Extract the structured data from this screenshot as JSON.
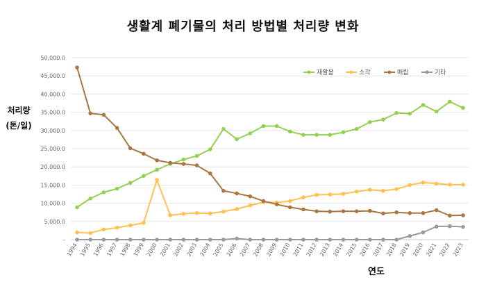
{
  "chart_data": {
    "type": "line",
    "title": "생활계 폐기물의 처리 방법별 처리량 변화",
    "ylabel": "처리량 (톤/일)",
    "ylabel_lines": [
      "처리량",
      "(톤/일)"
    ],
    "xlabel": "연도",
    "ylim": [
      0,
      50000
    ],
    "yticks": [
      "-",
      "5,000.0",
      "10,000.0",
      "15,000.0",
      "20,000.0",
      "25,000.0",
      "30,000.0",
      "35,000.0",
      "40,000.0",
      "45,000.0",
      "50,000.0"
    ],
    "grid": true,
    "legend_position": "top-right",
    "categories": [
      "1994",
      "1995",
      "1996",
      "1997",
      "1998",
      "1999",
      "2000",
      "2001",
      "2002",
      "2003",
      "2004",
      "2005",
      "2006",
      "2007",
      "2008",
      "2009",
      "2010",
      "2011",
      "2012",
      "2013",
      "2014",
      "2015",
      "2016",
      "2017",
      "2018",
      "2019",
      "2020",
      "2021",
      "2022",
      "2023"
    ],
    "series": [
      {
        "name": "재활용",
        "color": "#92d050",
        "values": [
          8900,
          11300,
          13000,
          14000,
          15600,
          17500,
          19200,
          20800,
          22000,
          23000,
          24800,
          30400,
          27600,
          29200,
          31200,
          31200,
          29700,
          28800,
          28800,
          28800,
          29500,
          30400,
          32300,
          33000,
          34800,
          34600,
          37000,
          35200,
          37900,
          36200
        ]
      },
      {
        "name": "소각",
        "color": "#ffc050",
        "values": [
          2000,
          1800,
          2800,
          3300,
          3900,
          4600,
          16400,
          6700,
          7100,
          7300,
          7200,
          7700,
          8400,
          9400,
          10300,
          10200,
          10600,
          11600,
          12300,
          12400,
          12600,
          13200,
          13700,
          13400,
          13900,
          15000,
          15700,
          15400,
          15100,
          15100
        ]
      },
      {
        "name": "매립",
        "color": "#a97640",
        "values": [
          47300,
          34700,
          34300,
          30700,
          25100,
          23600,
          21800,
          21100,
          20800,
          20400,
          18200,
          13400,
          12700,
          11900,
          10600,
          9700,
          8900,
          8300,
          7800,
          7700,
          7800,
          7800,
          7900,
          7200,
          7500,
          7300,
          7300,
          8100,
          6600,
          6700
        ]
      },
      {
        "name": "기타",
        "color": "#999999",
        "values": [
          0,
          0,
          0,
          0,
          0,
          0,
          0,
          0,
          0,
          0,
          0,
          0,
          300,
          0,
          0,
          0,
          0,
          0,
          0,
          0,
          0,
          0,
          0,
          0,
          0,
          1000,
          2000,
          3600,
          3700,
          3500
        ]
      }
    ]
  }
}
